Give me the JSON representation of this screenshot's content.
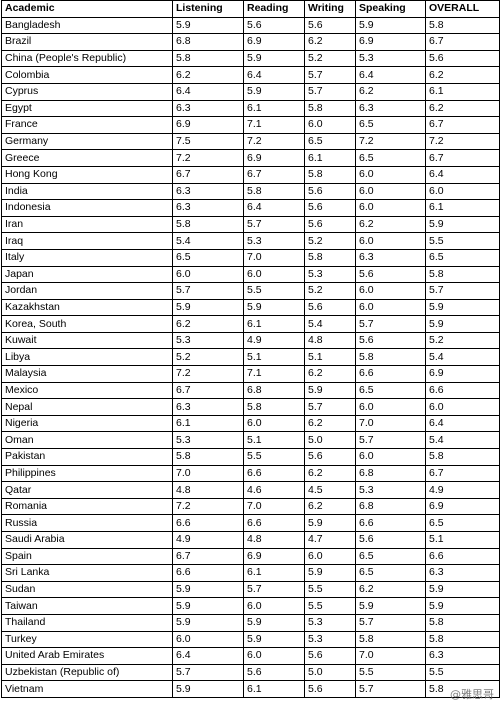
{
  "table": {
    "headers": [
      "Academic",
      "Listening",
      "Reading",
      "Writing",
      "Speaking",
      "OVERALL"
    ],
    "rows": [
      [
        "Bangladesh",
        "5.9",
        "5.6",
        "5.6",
        "5.9",
        "5.8"
      ],
      [
        "Brazil",
        "6.8",
        "6.9",
        "6.2",
        "6.9",
        "6.7"
      ],
      [
        "China (People's Republic)",
        "5.8",
        "5.9",
        "5.2",
        "5.3",
        "5.6"
      ],
      [
        "Colombia",
        "6.2",
        "6.4",
        "5.7",
        "6.4",
        "6.2"
      ],
      [
        "Cyprus",
        "6.4",
        "5.9",
        "5.7",
        "6.2",
        "6.1"
      ],
      [
        "Egypt",
        "6.3",
        "6.1",
        "5.8",
        "6.3",
        "6.2"
      ],
      [
        "France",
        "6.9",
        "7.1",
        "6.0",
        "6.5",
        "6.7"
      ],
      [
        "Germany",
        "7.5",
        "7.2",
        "6.5",
        "7.2",
        "7.2"
      ],
      [
        "Greece",
        "7.2",
        "6.9",
        "6.1",
        "6.5",
        "6.7"
      ],
      [
        "Hong Kong",
        "6.7",
        "6.7",
        "5.8",
        "6.0",
        "6.4"
      ],
      [
        "India",
        "6.3",
        "5.8",
        "5.6",
        "6.0",
        "6.0"
      ],
      [
        "Indonesia",
        "6.3",
        "6.4",
        "5.6",
        "6.0",
        "6.1"
      ],
      [
        "Iran",
        "5.8",
        "5.7",
        "5.6",
        "6.2",
        "5.9"
      ],
      [
        "Iraq",
        "5.4",
        "5.3",
        "5.2",
        "6.0",
        "5.5"
      ],
      [
        "Italy",
        "6.5",
        "7.0",
        "5.8",
        "6.3",
        "6.5"
      ],
      [
        "Japan",
        "6.0",
        "6.0",
        "5.3",
        "5.6",
        "5.8"
      ],
      [
        "Jordan",
        "5.7",
        "5.5",
        "5.2",
        "6.0",
        "5.7"
      ],
      [
        "Kazakhstan",
        "5.9",
        "5.9",
        "5.6",
        "6.0",
        "5.9"
      ],
      [
        "Korea, South",
        "6.2",
        "6.1",
        "5.4",
        "5.7",
        "5.9"
      ],
      [
        "Kuwait",
        "5.3",
        "4.9",
        "4.8",
        "5.6",
        "5.2"
      ],
      [
        "Libya",
        "5.2",
        "5.1",
        "5.1",
        "5.8",
        "5.4"
      ],
      [
        "Malaysia",
        "7.2",
        "7.1",
        "6.2",
        "6.6",
        "6.9"
      ],
      [
        "Mexico",
        "6.7",
        "6.8",
        "5.9",
        "6.5",
        "6.6"
      ],
      [
        "Nepal",
        "6.3",
        "5.8",
        "5.7",
        "6.0",
        "6.0"
      ],
      [
        "Nigeria",
        "6.1",
        "6.0",
        "6.2",
        "7.0",
        "6.4"
      ],
      [
        "Oman",
        "5.3",
        "5.1",
        "5.0",
        "5.7",
        "5.4"
      ],
      [
        "Pakistan",
        "5.8",
        "5.5",
        "5.6",
        "6.0",
        "5.8"
      ],
      [
        "Philippines",
        "7.0",
        "6.6",
        "6.2",
        "6.8",
        "6.7"
      ],
      [
        "Qatar",
        "4.8",
        "4.6",
        "4.5",
        "5.3",
        "4.9"
      ],
      [
        "Romania",
        "7.2",
        "7.0",
        "6.2",
        "6.8",
        "6.9"
      ],
      [
        "Russia",
        "6.6",
        "6.6",
        "5.9",
        "6.6",
        "6.5"
      ],
      [
        "Saudi Arabia",
        "4.9",
        "4.8",
        "4.7",
        "5.6",
        "5.1"
      ],
      [
        "Spain",
        "6.7",
        "6.9",
        "6.0",
        "6.5",
        "6.6"
      ],
      [
        "Sri Lanka",
        "6.6",
        "6.1",
        "5.9",
        "6.5",
        "6.3"
      ],
      [
        "Sudan",
        "5.9",
        "5.7",
        "5.5",
        "6.2",
        "5.9"
      ],
      [
        "Taiwan",
        "5.9",
        "6.0",
        "5.5",
        "5.9",
        "5.9"
      ],
      [
        "Thailand",
        "5.9",
        "5.9",
        "5.3",
        "5.7",
        "5.8"
      ],
      [
        "Turkey",
        "6.0",
        "5.9",
        "5.3",
        "5.8",
        "5.8"
      ],
      [
        "United Arab Emirates",
        "6.4",
        "6.0",
        "5.6",
        "7.0",
        "6.3"
      ],
      [
        "Uzbekistan (Republic of)",
        "5.7",
        "5.6",
        "5.0",
        "5.5",
        "5.5"
      ],
      [
        "Vietnam",
        "5.9",
        "6.1",
        "5.6",
        "5.7",
        "5.8"
      ]
    ]
  },
  "watermark": "@雅思哥"
}
